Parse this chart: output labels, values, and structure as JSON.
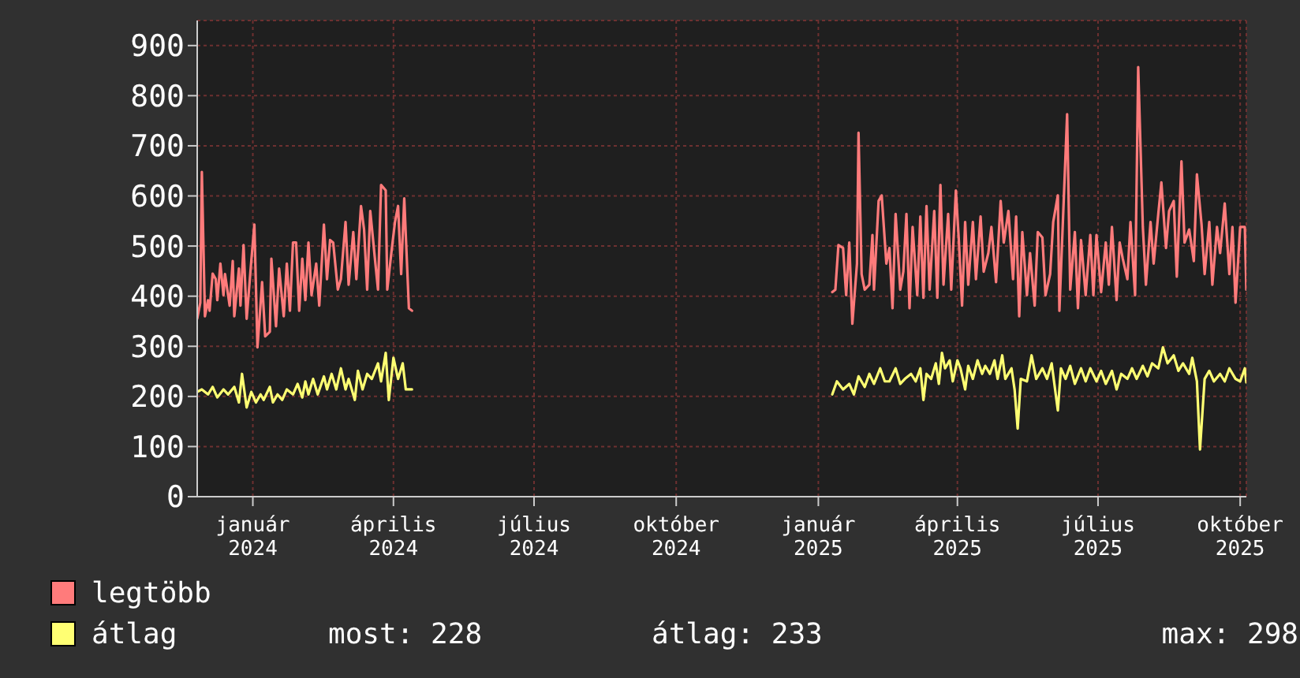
{
  "chart_data": {
    "type": "line",
    "legend": "bottom",
    "grid": true,
    "marker": "none",
    "line_style": "solid",
    "xlim": [
      "2023-11-26",
      "2025-10-05"
    ],
    "xticks": [
      {
        "value": "2024-01-01",
        "label": "január 2024"
      },
      {
        "value": "2024-04-01",
        "label": "április 2024"
      },
      {
        "value": "2024-07-01",
        "label": "július 2024"
      },
      {
        "value": "2024-10-01",
        "label": "október 2024"
      },
      {
        "value": "2025-01-01",
        "label": "január 2025"
      },
      {
        "value": "2025-04-01",
        "label": "április 2025"
      },
      {
        "value": "2025-07-01",
        "label": "július 2025"
      },
      {
        "value": "2025-10-01",
        "label": "október 2025"
      }
    ],
    "ylim": [
      0,
      950
    ],
    "yticks": [
      0,
      100,
      200,
      300,
      400,
      500,
      600,
      700,
      800,
      900
    ],
    "annotations": [
      "most: 228",
      "átlag: 233",
      "max: 298"
    ],
    "series": [
      {
        "name": "legtöbb",
        "color": "#ff7b7b",
        "x": [
          "2023-11-26",
          "2023-11-28",
          "2023-11-29",
          "2023-12-01",
          "2023-12-03",
          "2023-12-04",
          "2023-12-06",
          "2023-12-08",
          "2023-12-09",
          "2023-12-11",
          "2023-12-13",
          "2023-12-14",
          "2023-12-17",
          "2023-12-19",
          "2023-12-20",
          "2023-12-23",
          "2023-12-24",
          "2023-12-26",
          "2023-12-28",
          "2023-12-31",
          "2024-01-02",
          "2024-01-04",
          "2024-01-07",
          "2024-01-09",
          "2024-01-12",
          "2024-01-13",
          "2024-01-16",
          "2024-01-18",
          "2024-01-21",
          "2024-01-23",
          "2024-01-25",
          "2024-01-27",
          "2024-01-29",
          "2024-01-31",
          "2024-02-02",
          "2024-02-04",
          "2024-02-06",
          "2024-02-08",
          "2024-02-11",
          "2024-02-13",
          "2024-02-16",
          "2024-02-18",
          "2024-02-20",
          "2024-02-22",
          "2024-02-25",
          "2024-02-27",
          "2024-03-01",
          "2024-03-03",
          "2024-03-06",
          "2024-03-08",
          "2024-03-11",
          "2024-03-13",
          "2024-03-15",
          "2024-03-17",
          "2024-03-20",
          "2024-03-22",
          "2024-03-24",
          "2024-03-27",
          "2024-03-28",
          "2024-03-31",
          "2024-04-02",
          "2024-04-04",
          "2024-04-06",
          "2024-04-08",
          "2024-04-11",
          "2024-04-13",
          "2024-08-01",
          "2025-01-10",
          "2025-01-12",
          "2025-01-14",
          "2025-01-17",
          "2025-01-19",
          "2025-01-21",
          "2025-01-23",
          "2025-01-26",
          "2025-01-27",
          "2025-01-29",
          "2025-01-31",
          "2025-02-03",
          "2025-02-05",
          "2025-02-06",
          "2025-02-09",
          "2025-02-11",
          "2025-02-14",
          "2025-02-16",
          "2025-02-18",
          "2025-02-20",
          "2025-02-23",
          "2025-02-25",
          "2025-02-27",
          "2025-03-01",
          "2025-03-03",
          "2025-03-06",
          "2025-03-08",
          "2025-03-10",
          "2025-03-12",
          "2025-03-14",
          "2025-03-17",
          "2025-03-19",
          "2025-03-21",
          "2025-03-23",
          "2025-03-26",
          "2025-03-28",
          "2025-03-31",
          "2025-04-02",
          "2025-04-04",
          "2025-04-06",
          "2025-04-08",
          "2025-04-11",
          "2025-04-13",
          "2025-04-16",
          "2025-04-18",
          "2025-04-21",
          "2025-04-23",
          "2025-04-26",
          "2025-04-29",
          "2025-05-01",
          "2025-05-04",
          "2025-05-07",
          "2025-05-09",
          "2025-05-11",
          "2025-05-13",
          "2025-05-16",
          "2025-05-18",
          "2025-05-21",
          "2025-05-23",
          "2025-05-26",
          "2025-05-28",
          "2025-05-31",
          "2025-06-02",
          "2025-06-05",
          "2025-06-06",
          "2025-06-08",
          "2025-06-11",
          "2025-06-13",
          "2025-06-16",
          "2025-06-18",
          "2025-06-20",
          "2025-06-23",
          "2025-06-26",
          "2025-06-28",
          "2025-06-30",
          "2025-07-03",
          "2025-07-06",
          "2025-07-08",
          "2025-07-10",
          "2025-07-13",
          "2025-07-15",
          "2025-07-17",
          "2025-07-20",
          "2025-07-22",
          "2025-07-25",
          "2025-07-27",
          "2025-07-30",
          "2025-08-01",
          "2025-08-04",
          "2025-08-06",
          "2025-08-09",
          "2025-08-11",
          "2025-08-14",
          "2025-08-16",
          "2025-08-19",
          "2025-08-21",
          "2025-08-24",
          "2025-08-26",
          "2025-08-29",
          "2025-09-01",
          "2025-09-03",
          "2025-09-06",
          "2025-09-08",
          "2025-09-11",
          "2025-09-13",
          "2025-09-16",
          "2025-09-18",
          "2025-09-21",
          "2025-09-24",
          "2025-09-26",
          "2025-09-28",
          "2025-10-01",
          "2025-10-04",
          "2025-10-05"
        ],
        "values": [
          355,
          387,
          648,
          360,
          392,
          371,
          445,
          434,
          392,
          465,
          402,
          444,
          381,
          470,
          360,
          455,
          381,
          502,
          355,
          470,
          543,
          298,
          428,
          320,
          329,
          475,
          340,
          455,
          360,
          465,
          371,
          507,
          507,
          371,
          475,
          392,
          507,
          402,
          465,
          381,
          543,
          434,
          512,
          507,
          413,
          434,
          548,
          423,
          528,
          434,
          580,
          533,
          413,
          570,
          475,
          413,
          622,
          611,
          413,
          496,
          548,
          580,
          444,
          595,
          376,
          371,
          null,
          408,
          413,
          502,
          496,
          402,
          507,
          345,
          465,
          726,
          444,
          413,
          423,
          522,
          413,
          590,
          601,
          465,
          496,
          376,
          564,
          413,
          449,
          564,
          376,
          538,
          402,
          559,
          397,
          580,
          413,
          570,
          397,
          622,
          423,
          564,
          413,
          611,
          507,
          381,
          548,
          423,
          548,
          434,
          559,
          449,
          486,
          538,
          428,
          590,
          507,
          570,
          434,
          559,
          360,
          528,
          402,
          486,
          381,
          528,
          517,
          402,
          444,
          548,
          601,
          371,
          528,
          763,
          413,
          528,
          376,
          512,
          402,
          522,
          402,
          522,
          408,
          507,
          423,
          538,
          392,
          507,
          475,
          434,
          548,
          402,
          857,
          538,
          423,
          548,
          465,
          564,
          627,
          496,
          570,
          590,
          439,
          669,
          507,
          533,
          470,
          643,
          543,
          444,
          548,
          423,
          538,
          486,
          585,
          444,
          538,
          387,
          538,
          538,
          413
        ]
      },
      {
        "name": "átlag",
        "color": "#ffff73",
        "x": [
          "2023-11-26",
          "2023-11-29",
          "2023-12-03",
          "2023-12-06",
          "2023-12-09",
          "2023-12-13",
          "2023-12-16",
          "2023-12-20",
          "2023-12-23",
          "2023-12-25",
          "2023-12-28",
          "2023-12-31",
          "2024-01-03",
          "2024-01-06",
          "2024-01-08",
          "2024-01-12",
          "2024-01-14",
          "2024-01-17",
          "2024-01-20",
          "2024-01-23",
          "2024-01-27",
          "2024-01-30",
          "2024-02-02",
          "2024-02-04",
          "2024-02-06",
          "2024-02-09",
          "2024-02-12",
          "2024-02-16",
          "2024-02-18",
          "2024-02-21",
          "2024-02-24",
          "2024-02-27",
          "2024-03-01",
          "2024-03-03",
          "2024-03-07",
          "2024-03-09",
          "2024-03-12",
          "2024-03-15",
          "2024-03-18",
          "2024-03-22",
          "2024-03-24",
          "2024-03-27",
          "2024-03-29",
          "2024-04-01",
          "2024-04-04",
          "2024-04-07",
          "2024-04-09",
          "2024-04-13",
          "2024-08-01",
          "2025-01-10",
          "2025-01-13",
          "2025-01-17",
          "2025-01-21",
          "2025-01-24",
          "2025-01-27",
          "2025-01-31",
          "2025-02-03",
          "2025-02-06",
          "2025-02-10",
          "2025-02-13",
          "2025-02-16",
          "2025-02-20",
          "2025-02-23",
          "2025-02-26",
          "2025-03-02",
          "2025-03-05",
          "2025-03-08",
          "2025-03-10",
          "2025-03-12",
          "2025-03-15",
          "2025-03-18",
          "2025-03-20",
          "2025-03-22",
          "2025-03-24",
          "2025-03-27",
          "2025-03-29",
          "2025-04-01",
          "2025-04-03",
          "2025-04-06",
          "2025-04-08",
          "2025-04-11",
          "2025-04-14",
          "2025-04-17",
          "2025-04-19",
          "2025-04-22",
          "2025-04-25",
          "2025-04-27",
          "2025-04-30",
          "2025-05-02",
          "2025-05-06",
          "2025-05-08",
          "2025-05-10",
          "2025-05-12",
          "2025-05-16",
          "2025-05-19",
          "2025-05-22",
          "2025-05-26",
          "2025-05-29",
          "2025-06-01",
          "2025-06-05",
          "2025-06-07",
          "2025-06-10",
          "2025-06-13",
          "2025-06-16",
          "2025-06-20",
          "2025-06-23",
          "2025-06-26",
          "2025-06-30",
          "2025-07-03",
          "2025-07-06",
          "2025-07-10",
          "2025-07-13",
          "2025-07-16",
          "2025-07-20",
          "2025-07-23",
          "2025-07-26",
          "2025-07-30",
          "2025-08-02",
          "2025-08-05",
          "2025-08-09",
          "2025-08-12",
          "2025-08-15",
          "2025-08-19",
          "2025-08-22",
          "2025-08-25",
          "2025-08-29",
          "2025-08-31",
          "2025-09-03",
          "2025-09-05",
          "2025-09-08",
          "2025-09-11",
          "2025-09-14",
          "2025-09-18",
          "2025-09-21",
          "2025-09-24",
          "2025-09-28",
          "2025-10-01",
          "2025-10-04",
          "2025-10-05"
        ],
        "values": [
          209,
          214,
          204,
          219,
          198,
          214,
          204,
          219,
          188,
          245,
          178,
          209,
          188,
          204,
          193,
          219,
          188,
          204,
          193,
          214,
          204,
          225,
          198,
          230,
          204,
          235,
          204,
          240,
          214,
          245,
          214,
          256,
          214,
          235,
          193,
          251,
          214,
          245,
          235,
          266,
          230,
          287,
          193,
          277,
          235,
          266,
          214,
          214,
          null,
          204,
          230,
          214,
          225,
          204,
          240,
          219,
          245,
          225,
          256,
          230,
          230,
          256,
          225,
          235,
          245,
          230,
          256,
          193,
          245,
          235,
          266,
          225,
          287,
          256,
          272,
          230,
          272,
          256,
          214,
          261,
          235,
          272,
          245,
          261,
          245,
          272,
          235,
          282,
          235,
          256,
          214,
          136,
          235,
          230,
          282,
          235,
          256,
          235,
          266,
          172,
          256,
          235,
          261,
          225,
          256,
          230,
          256,
          230,
          251,
          225,
          251,
          214,
          245,
          235,
          256,
          235,
          261,
          240,
          266,
          256,
          298,
          266,
          282,
          251,
          266,
          245,
          277,
          230,
          94,
          235,
          251,
          230,
          245,
          230,
          256,
          235,
          230,
          256,
          228
        ]
      }
    ]
  }
}
